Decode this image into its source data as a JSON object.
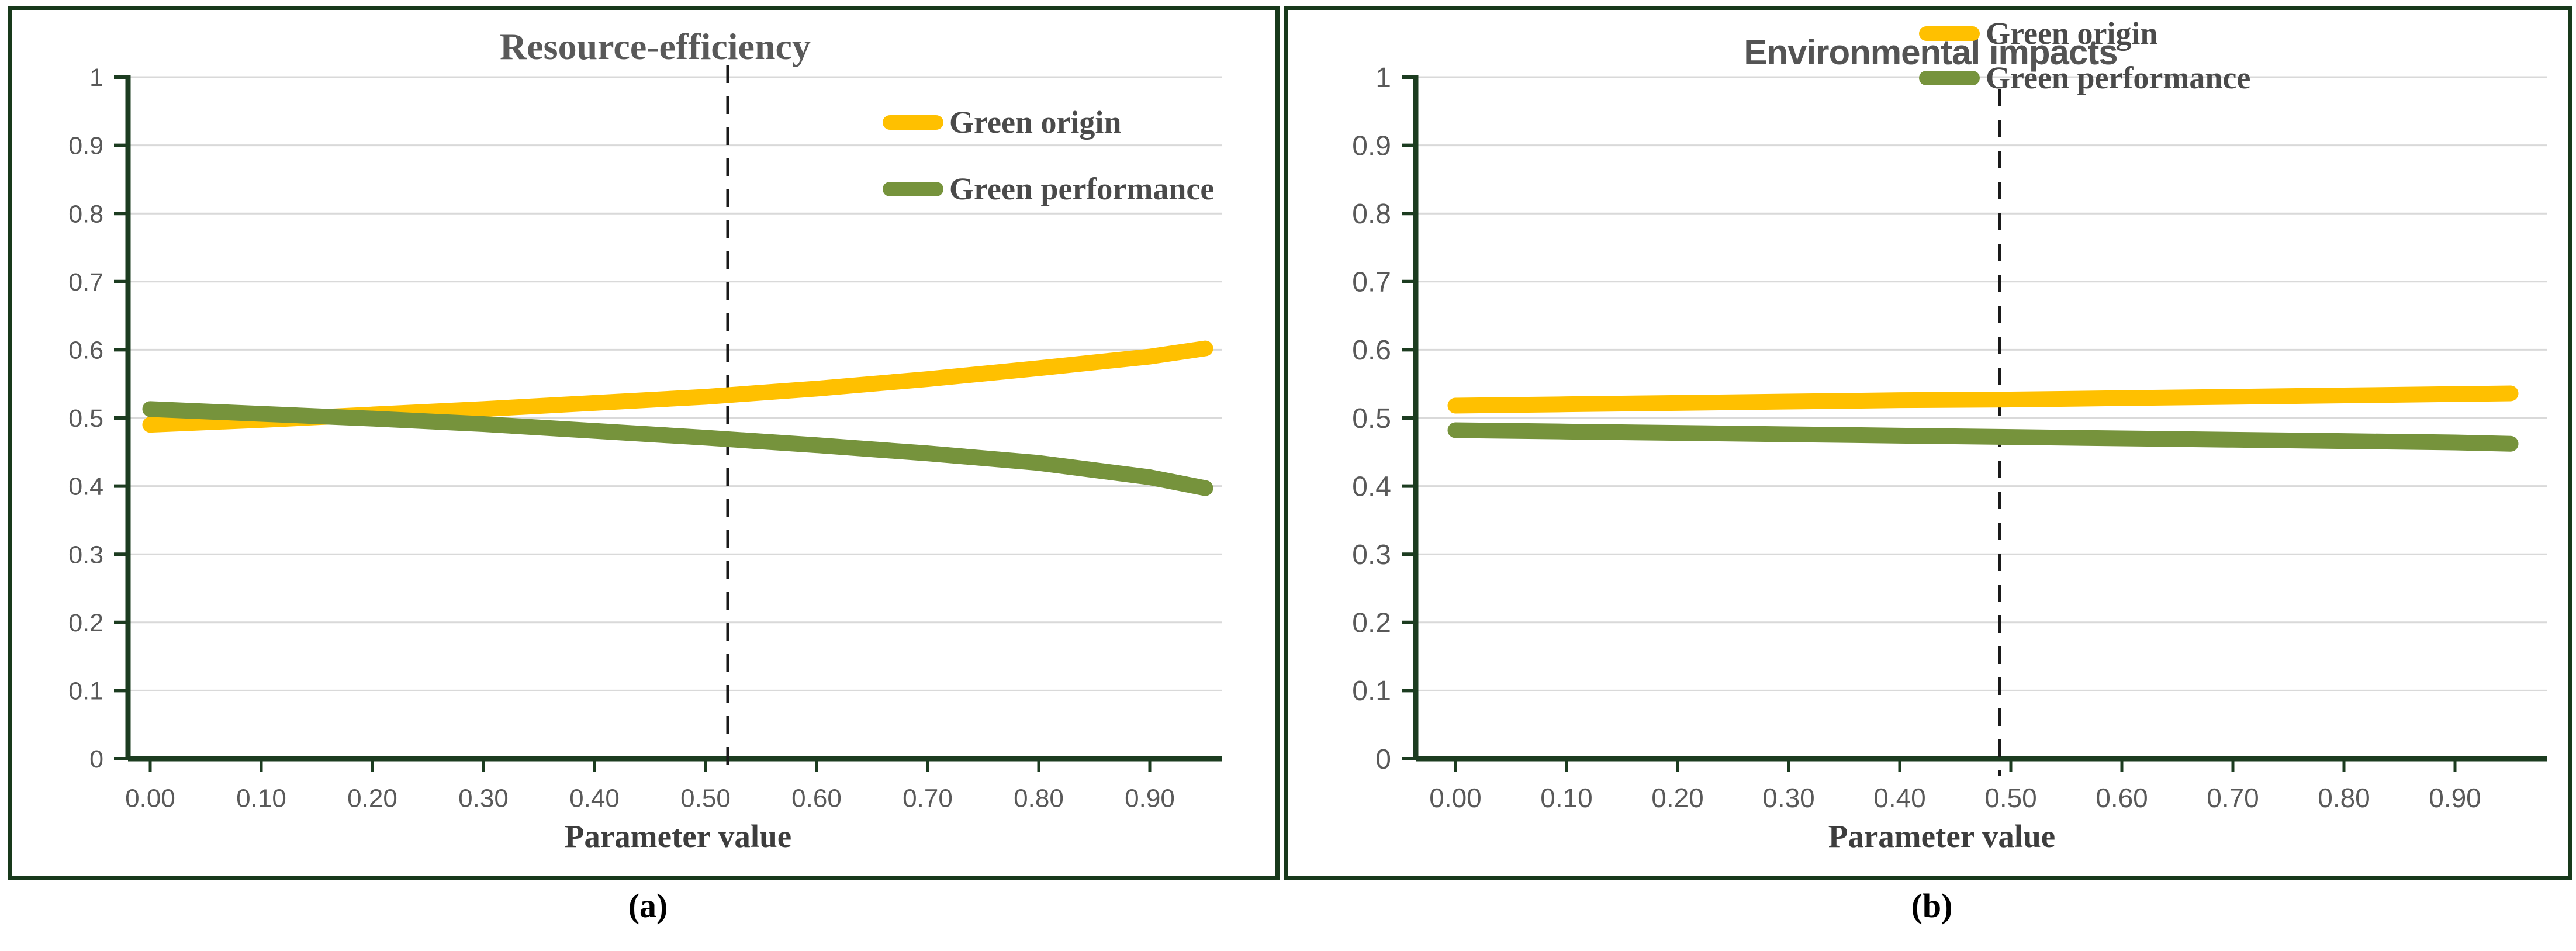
{
  "figure": {
    "captions": {
      "a": "(a)",
      "b": "(b)"
    }
  },
  "colors": {
    "gold": "#FFC000",
    "olive": "#76933C",
    "frame_green": "#18391B",
    "axis_green": "#1C3C20",
    "gridline": "#D9D9D9",
    "dashed_line": "#1A1A1A",
    "tick_label_gray": "#595959",
    "title_gray": "#595959"
  },
  "chart_data": [
    {
      "type": "line",
      "title": "Resource-efficiency",
      "xlabel": "Parameter value",
      "ylabel": "",
      "ylim": [
        0,
        1
      ],
      "xlim": [
        0,
        0.97
      ],
      "grid": "horizontal",
      "legend_position": "inside-upper-right",
      "dashed_vertical_line_x": 0.52,
      "x_tick_labels": [
        "0.00",
        "0.10",
        "0.20",
        "0.30",
        "0.40",
        "0.50",
        "0.60",
        "0.70",
        "0.80",
        "0.90"
      ],
      "y_tick_labels": [
        "1",
        "0.9",
        "0.8",
        "0.7",
        "0.6",
        "0.5",
        "0.4",
        "0.3",
        "0.2",
        "0.1",
        "0"
      ],
      "x": [
        0,
        0.1,
        0.2,
        0.3,
        0.4,
        0.5,
        0.6,
        0.7,
        0.8,
        0.9,
        0.95
      ],
      "series": [
        {
          "name": "Green origin",
          "color": "#FFC000",
          "values": [
            0.49,
            0.497,
            0.505,
            0.513,
            0.522,
            0.531,
            0.543,
            0.557,
            0.573,
            0.59,
            0.602
          ]
        },
        {
          "name": "Green performance",
          "color": "#76933C",
          "values": [
            0.513,
            0.506,
            0.499,
            0.491,
            0.481,
            0.471,
            0.46,
            0.448,
            0.434,
            0.413,
            0.397
          ]
        }
      ]
    },
    {
      "type": "line",
      "title": "Environmental impacts",
      "xlabel": "Parameter value",
      "ylabel": "",
      "ylim": [
        0,
        1
      ],
      "xlim": [
        0,
        0.97
      ],
      "grid": "horizontal",
      "legend_position": "top-right",
      "dashed_vertical_line_x": 0.49,
      "x_tick_labels": [
        "0.00",
        "0.10",
        "0.20",
        "0.30",
        "0.40",
        "0.50",
        "0.60",
        "0.70",
        "0.80",
        "0.90"
      ],
      "y_tick_labels": [
        "1",
        "0.9",
        "0.8",
        "0.7",
        "0.6",
        "0.5",
        "0.4",
        "0.3",
        "0.2",
        "0.1",
        "0"
      ],
      "x": [
        0,
        0.1,
        0.2,
        0.3,
        0.4,
        0.5,
        0.6,
        0.7,
        0.8,
        0.9,
        0.95
      ],
      "series": [
        {
          "name": "Green origin",
          "color": "#FFC000",
          "values": [
            0.518,
            0.52,
            0.522,
            0.524,
            0.526,
            0.527,
            0.529,
            0.531,
            0.533,
            0.535,
            0.536
          ]
        },
        {
          "name": "Green performance",
          "color": "#76933C",
          "values": [
            0.482,
            0.48,
            0.478,
            0.476,
            0.474,
            0.472,
            0.47,
            0.468,
            0.466,
            0.464,
            0.462
          ]
        }
      ]
    }
  ]
}
